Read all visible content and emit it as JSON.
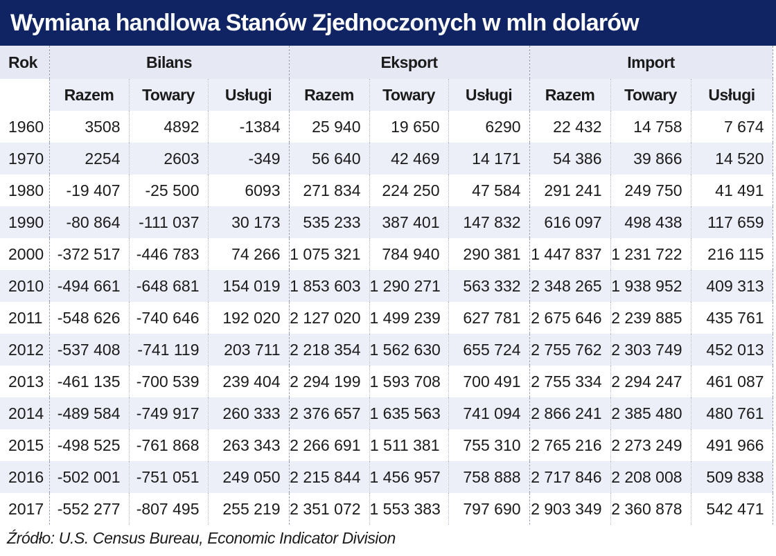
{
  "title": "Wymiana handlowa Stanów Zjednoczonych w mln dolarów",
  "source": "Źródło: U.S. Census Bureau, Economic Indicator Division",
  "colors": {
    "title_background": "#102363",
    "header_band": "#e6e9f4",
    "stripe": "#eceef8",
    "text": "#1b1b1b"
  },
  "chart_data": {
    "type": "table",
    "title": "Wymiana handlowa Stanów Zjednoczonych w mln dolarów",
    "row_header": "Rok",
    "groups": [
      {
        "name": "Bilans",
        "columns": [
          "Razem",
          "Towary",
          "Usługi"
        ]
      },
      {
        "name": "Eksport",
        "columns": [
          "Razem",
          "Towary",
          "Usługi"
        ]
      },
      {
        "name": "Import",
        "columns": [
          "Razem",
          "Towary",
          "Usługi"
        ]
      }
    ],
    "rows": [
      {
        "year": "1960",
        "values": [
          "3508",
          "4892",
          "-1384",
          "25 940",
          "19 650",
          "6290",
          "22 432",
          "14 758",
          "7 674"
        ]
      },
      {
        "year": "1970",
        "values": [
          "2254",
          "2603",
          "-349",
          "56 640",
          "42 469",
          "14 171",
          "54 386",
          "39 866",
          "14 520"
        ]
      },
      {
        "year": "1980",
        "values": [
          "-19 407",
          "-25 500",
          "6093",
          "271 834",
          "224 250",
          "47 584",
          "291 241",
          "249 750",
          "41 491"
        ]
      },
      {
        "year": "1990",
        "values": [
          "-80 864",
          "-111 037",
          "30 173",
          "535 233",
          "387 401",
          "147 832",
          "616 097",
          "498 438",
          "117 659"
        ]
      },
      {
        "year": "2000",
        "values": [
          "-372 517",
          "-446 783",
          "74 266",
          "1 075 321",
          "784 940",
          "290 381",
          "1 447 837",
          "1 231 722",
          "216 115"
        ]
      },
      {
        "year": "2010",
        "values": [
          "-494 661",
          "-648 681",
          "154 019",
          "1 853 603",
          "1 290 271",
          "563 332",
          "2 348 265",
          "1 938 952",
          "409 313"
        ]
      },
      {
        "year": "2011",
        "values": [
          "-548 626",
          "-740 646",
          "192 020",
          "2 127 020",
          "1 499 239",
          "627 781",
          "2 675 646",
          "2 239 885",
          "435 761"
        ]
      },
      {
        "year": "2012",
        "values": [
          "-537 408",
          "-741 119",
          "203 711",
          "2 218 354",
          "1 562 630",
          "655 724",
          "2 755 762",
          "2 303 749",
          "452 013"
        ]
      },
      {
        "year": "2013",
        "values": [
          "-461 135",
          "-700 539",
          "239 404",
          "2 294 199",
          "1 593 708",
          "700 491",
          "2 755 334",
          "2 294 247",
          "461 087"
        ]
      },
      {
        "year": "2014",
        "values": [
          "-489 584",
          "-749 917",
          "260 333",
          "2 376 657",
          "1 635 563",
          "741 094",
          "2 866 241",
          "2 385 480",
          "480 761"
        ]
      },
      {
        "year": "2015",
        "values": [
          "-498 525",
          "-761 868",
          "263 343",
          "2 266 691",
          "1 511 381",
          "755 310",
          "2 765 216",
          "2 273 249",
          "491 966"
        ]
      },
      {
        "year": "2016",
        "values": [
          "-502 001",
          "-751 051",
          "249 050",
          "2 215 844",
          "1 456 957",
          "758 888",
          "2 717 846",
          "2 208 008",
          "509 838"
        ]
      },
      {
        "year": "2017",
        "values": [
          "-552 277",
          "-807 495",
          "255 219",
          "2 351 072",
          "1 553 383",
          "797 690",
          "2 903 349",
          "2 360 878",
          "542 471"
        ]
      }
    ]
  }
}
